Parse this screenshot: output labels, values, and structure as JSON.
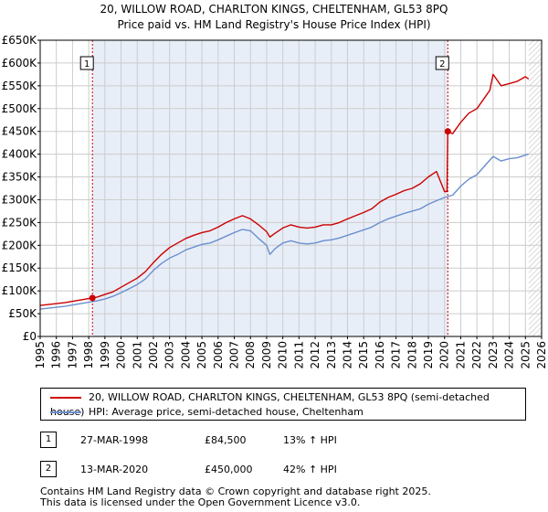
{
  "title_line1": "20, WILLOW ROAD, CHARLTON KINGS, CHELTENHAM, GL53 8PQ",
  "title_line2": "Price paid vs. HM Land Registry's House Price Index (HPI)",
  "colors": {
    "property": "#cc0000",
    "hpi": "#6a8fcf",
    "marker_line": "#cc0000",
    "shade": "#e8eef8",
    "grid": "#cccccc",
    "hatch": "#bfbfbf"
  },
  "legend": {
    "property_label": "20, WILLOW ROAD, CHARLTON KINGS, CHELTENHAM, GL53 8PQ (semi-detached house)",
    "hpi_label": "HPI: Average price, semi-detached house, Cheltenham"
  },
  "sales": [
    {
      "num": "1",
      "date": "27-MAR-1998",
      "price": "£84,500",
      "hpi_change": "13% ↑ HPI"
    },
    {
      "num": "2",
      "date": "13-MAR-2020",
      "price": "£450,000",
      "hpi_change": "42% ↑ HPI"
    }
  ],
  "footer_line1": "Contains HM Land Registry data © Crown copyright and database right 2025.",
  "footer_line2": "This data is licensed under the Open Government Licence v3.0.",
  "chart_data": {
    "type": "line",
    "title": "Price paid vs. HM Land Registry's House Price Index (HPI)",
    "xlim": [
      1995,
      2026
    ],
    "ylim": [
      0,
      650000
    ],
    "x_ticks": [
      1995,
      1996,
      1997,
      1998,
      1999,
      2000,
      2001,
      2002,
      2003,
      2004,
      2005,
      2006,
      2007,
      2008,
      2009,
      2010,
      2011,
      2012,
      2013,
      2014,
      2015,
      2016,
      2017,
      2018,
      2019,
      2020,
      2021,
      2022,
      2023,
      2024,
      2025,
      2026
    ],
    "y_ticks": [
      0,
      50000,
      100000,
      150000,
      200000,
      250000,
      300000,
      350000,
      400000,
      450000,
      500000,
      550000,
      600000,
      650000
    ],
    "y_tick_labels": [
      "£0",
      "£50K",
      "£100K",
      "£150K",
      "£200K",
      "£250K",
      "£300K",
      "£350K",
      "£400K",
      "£450K",
      "£500K",
      "£550K",
      "£600K",
      "£650K"
    ],
    "shaded_region": [
      1998.23,
      2020.2
    ],
    "hatched_region": [
      2025.2,
      2026
    ],
    "markers": [
      {
        "label": "1",
        "x": 1998.23,
        "y": 84500
      },
      {
        "label": "2",
        "x": 2020.2,
        "y": 450000
      }
    ],
    "series": [
      {
        "name": "20, WILLOW ROAD, CHARLTON KINGS, CHELTENHAM, GL53 8PQ (semi-detached house)",
        "x": [
          1995.0,
          1995.5,
          1996.0,
          1996.5,
          1997.0,
          1997.5,
          1998.0,
          1998.23,
          1998.5,
          1999.0,
          1999.5,
          2000.0,
          2000.5,
          2001.0,
          2001.5,
          2002.0,
          2002.5,
          2003.0,
          2003.5,
          2004.0,
          2004.5,
          2005.0,
          2005.5,
          2006.0,
          2006.5,
          2007.0,
          2007.5,
          2008.0,
          2008.5,
          2009.0,
          2009.2,
          2009.5,
          2010.0,
          2010.5,
          2011.0,
          2011.5,
          2012.0,
          2012.5,
          2013.0,
          2013.5,
          2014.0,
          2014.5,
          2015.0,
          2015.5,
          2016.0,
          2016.5,
          2017.0,
          2017.5,
          2018.0,
          2018.5,
          2019.0,
          2019.5,
          2020.0,
          2020.15,
          2020.2,
          2020.5,
          2021.0,
          2021.5,
          2022.0,
          2022.5,
          2022.8,
          2023.0,
          2023.5,
          2024.0,
          2024.5,
          2025.0,
          2025.2
        ],
        "y": [
          68000,
          70000,
          72000,
          74000,
          77000,
          80000,
          83000,
          84500,
          86000,
          92000,
          98000,
          108000,
          118000,
          128000,
          142000,
          162000,
          180000,
          195000,
          205000,
          215000,
          222000,
          228000,
          232000,
          240000,
          250000,
          258000,
          265000,
          258000,
          245000,
          230000,
          218000,
          226000,
          238000,
          245000,
          240000,
          238000,
          240000,
          245000,
          245000,
          250000,
          258000,
          265000,
          272000,
          280000,
          295000,
          305000,
          312000,
          320000,
          325000,
          335000,
          350000,
          362000,
          318000,
          318000,
          450000,
          445000,
          470000,
          490000,
          500000,
          525000,
          540000,
          575000,
          550000,
          555000,
          560000,
          570000,
          565000
        ]
      },
      {
        "name": "HPI: Average price, semi-detached house, Cheltenham",
        "x": [
          1995.0,
          1995.5,
          1996.0,
          1996.5,
          1997.0,
          1997.5,
          1998.0,
          1998.5,
          1999.0,
          1999.5,
          2000.0,
          2000.5,
          2001.0,
          2001.5,
          2002.0,
          2002.5,
          2003.0,
          2003.5,
          2004.0,
          2004.5,
          2005.0,
          2005.5,
          2006.0,
          2006.5,
          2007.0,
          2007.5,
          2008.0,
          2008.5,
          2009.0,
          2009.2,
          2009.5,
          2010.0,
          2010.5,
          2011.0,
          2011.5,
          2012.0,
          2012.5,
          2013.0,
          2013.5,
          2014.0,
          2014.5,
          2015.0,
          2015.5,
          2016.0,
          2016.5,
          2017.0,
          2017.5,
          2018.0,
          2018.5,
          2019.0,
          2019.5,
          2020.0,
          2020.5,
          2021.0,
          2021.5,
          2022.0,
          2022.5,
          2023.0,
          2023.5,
          2024.0,
          2024.5,
          2025.0,
          2025.2
        ],
        "y": [
          60000,
          62000,
          64000,
          66000,
          69000,
          72000,
          75000,
          78000,
          82000,
          88000,
          96000,
          105000,
          114000,
          126000,
          145000,
          160000,
          172000,
          180000,
          190000,
          196000,
          202000,
          205000,
          212000,
          220000,
          228000,
          235000,
          232000,
          215000,
          200000,
          180000,
          192000,
          205000,
          210000,
          205000,
          203000,
          205000,
          210000,
          212000,
          216000,
          222000,
          228000,
          234000,
          240000,
          250000,
          258000,
          264000,
          270000,
          275000,
          280000,
          290000,
          298000,
          305000,
          310000,
          330000,
          345000,
          355000,
          375000,
          395000,
          385000,
          390000,
          392000,
          398000,
          400000
        ]
      }
    ]
  }
}
